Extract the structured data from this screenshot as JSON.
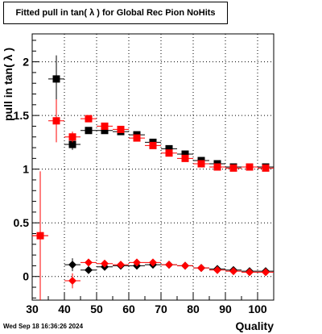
{
  "page": {
    "title": "Fitted pull in tan( λ ) for Global Rec Pion NoHits",
    "timestamp": "Wed Sep 18 16:36:26 2024"
  },
  "chart_data": {
    "type": "scatter",
    "title": "Fitted pull in tan( λ ) for Global Rec Pion NoHits",
    "xlabel": "Quality",
    "ylabel": "pull in tan( λ )",
    "xlim": [
      30,
      105
    ],
    "ylim": [
      -0.22,
      2.26
    ],
    "xticks": [
      30,
      40,
      50,
      60,
      70,
      80,
      90,
      100
    ],
    "yticks": [
      0,
      0.5,
      1,
      1.5,
      2
    ],
    "ytick_labels": [
      "0",
      "0.5",
      "1",
      "1.5",
      "2"
    ],
    "grid": true,
    "legend": "none",
    "colors": {
      "black": "#000000",
      "red": "#ff0000"
    },
    "series": [
      {
        "color": "black",
        "marker": "square",
        "points": [
          {
            "x": 37.5,
            "y": 1.84,
            "yerr": 0.22
          },
          {
            "x": 42.5,
            "y": 1.23,
            "yerr": 0.05
          },
          {
            "x": 47.5,
            "y": 1.36,
            "yerr": 0.02
          },
          {
            "x": 52.5,
            "y": 1.36,
            "yerr": 0.02
          },
          {
            "x": 57.5,
            "y": 1.35,
            "yerr": 0.02
          },
          {
            "x": 62.5,
            "y": 1.32,
            "yerr": 0.02
          },
          {
            "x": 67.5,
            "y": 1.25,
            "yerr": 0.02
          },
          {
            "x": 72.5,
            "y": 1.19,
            "yerr": 0.02
          },
          {
            "x": 77.5,
            "y": 1.14,
            "yerr": 0.02
          },
          {
            "x": 82.5,
            "y": 1.08,
            "yerr": 0.02
          },
          {
            "x": 87.5,
            "y": 1.05,
            "yerr": 0.02
          },
          {
            "x": 92.5,
            "y": 1.02,
            "yerr": 0.02
          },
          {
            "x": 97.5,
            "y": 1.02,
            "yerr": 0.02
          },
          {
            "x": 102.5,
            "y": 1.02,
            "yerr": 0.02
          }
        ]
      },
      {
        "color": "red",
        "marker": "square",
        "points": [
          {
            "x": 32.5,
            "y": 0.38,
            "yerr": 0.0
          },
          {
            "x": 37.5,
            "y": 1.45,
            "yerr": 0.2
          },
          {
            "x": 42.5,
            "y": 1.3,
            "yerr": 0.05
          },
          {
            "x": 47.5,
            "y": 1.47,
            "yerr": 0.02
          },
          {
            "x": 52.5,
            "y": 1.4,
            "yerr": 0.02
          },
          {
            "x": 57.5,
            "y": 1.37,
            "yerr": 0.02
          },
          {
            "x": 62.5,
            "y": 1.29,
            "yerr": 0.02
          },
          {
            "x": 67.5,
            "y": 1.22,
            "yerr": 0.02
          },
          {
            "x": 72.5,
            "y": 1.15,
            "yerr": 0.02
          },
          {
            "x": 77.5,
            "y": 1.1,
            "yerr": 0.02
          },
          {
            "x": 82.5,
            "y": 1.05,
            "yerr": 0.02
          },
          {
            "x": 87.5,
            "y": 1.02,
            "yerr": 0.02
          },
          {
            "x": 92.5,
            "y": 1.01,
            "yerr": 0.02
          },
          {
            "x": 97.5,
            "y": 1.02,
            "yerr": 0.02
          },
          {
            "x": 102.5,
            "y": 1.01,
            "yerr": 0.02
          }
        ]
      },
      {
        "color": "black",
        "marker": "diamond",
        "points": [
          {
            "x": 42.5,
            "y": 0.11,
            "yerr": 0.06
          },
          {
            "x": 47.5,
            "y": 0.06,
            "yerr": 0.02
          },
          {
            "x": 52.5,
            "y": 0.09,
            "yerr": 0.02
          },
          {
            "x": 57.5,
            "y": 0.1,
            "yerr": 0.02
          },
          {
            "x": 62.5,
            "y": 0.1,
            "yerr": 0.02
          },
          {
            "x": 67.5,
            "y": 0.11,
            "yerr": 0.02
          },
          {
            "x": 72.5,
            "y": 0.11,
            "yerr": 0.02
          },
          {
            "x": 77.5,
            "y": 0.1,
            "yerr": 0.02
          },
          {
            "x": 82.5,
            "y": 0.08,
            "yerr": 0.02
          },
          {
            "x": 87.5,
            "y": 0.07,
            "yerr": 0.02
          },
          {
            "x": 92.5,
            "y": 0.06,
            "yerr": 0.02
          },
          {
            "x": 97.5,
            "y": 0.05,
            "yerr": 0.02
          },
          {
            "x": 102.5,
            "y": 0.05,
            "yerr": 0.02
          }
        ]
      },
      {
        "color": "red",
        "marker": "diamond",
        "points": [
          {
            "x": 32.5,
            "y": 0.38,
            "yerr": 0.6
          },
          {
            "x": 42.5,
            "y": -0.04,
            "yerr": 0.07
          },
          {
            "x": 47.5,
            "y": 0.13,
            "yerr": 0.02
          },
          {
            "x": 52.5,
            "y": 0.12,
            "yerr": 0.02
          },
          {
            "x": 57.5,
            "y": 0.11,
            "yerr": 0.02
          },
          {
            "x": 62.5,
            "y": 0.13,
            "yerr": 0.02
          },
          {
            "x": 67.5,
            "y": 0.13,
            "yerr": 0.02
          },
          {
            "x": 72.5,
            "y": 0.11,
            "yerr": 0.02
          },
          {
            "x": 77.5,
            "y": 0.1,
            "yerr": 0.02
          },
          {
            "x": 82.5,
            "y": 0.08,
            "yerr": 0.02
          },
          {
            "x": 87.5,
            "y": 0.06,
            "yerr": 0.02
          },
          {
            "x": 92.5,
            "y": 0.05,
            "yerr": 0.02
          },
          {
            "x": 97.5,
            "y": 0.04,
            "yerr": 0.02
          },
          {
            "x": 102.5,
            "y": 0.04,
            "yerr": 0.02
          }
        ]
      }
    ]
  }
}
